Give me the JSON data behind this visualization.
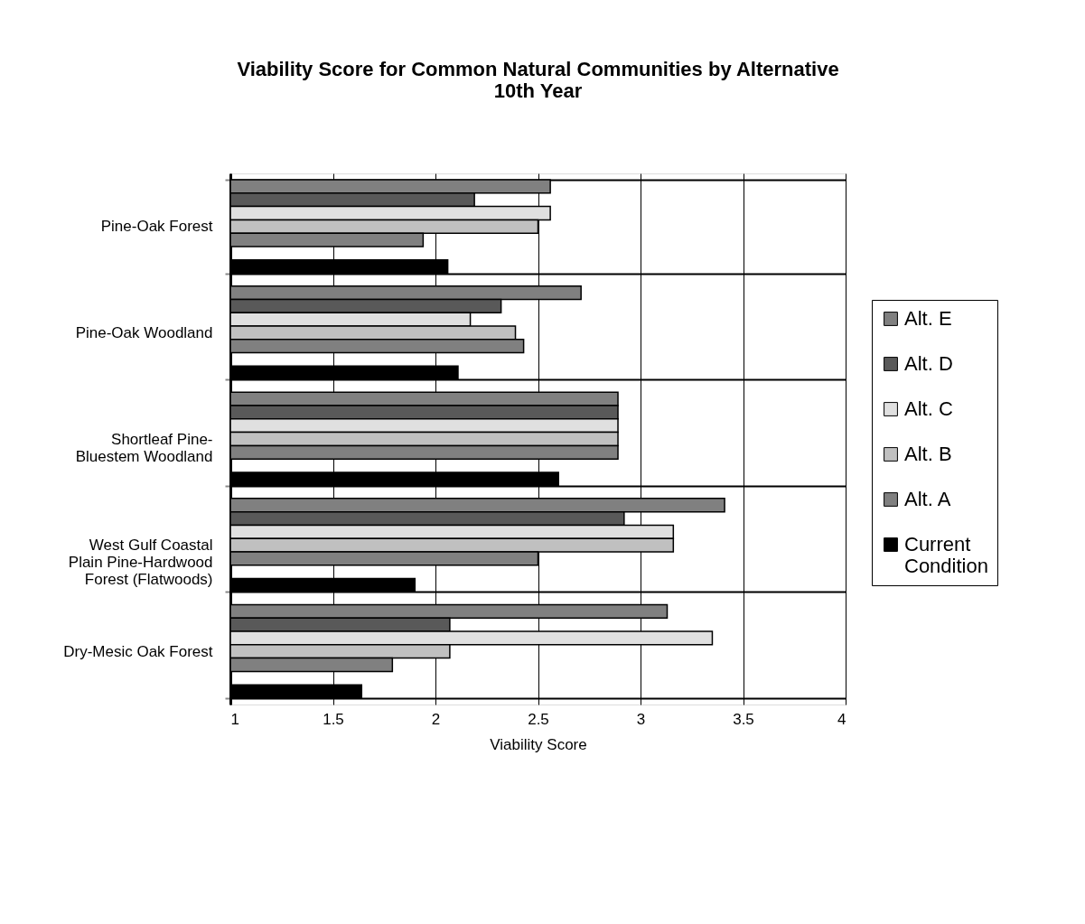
{
  "chart_data": {
    "type": "bar",
    "orientation": "horizontal",
    "title": [
      "Viability Score for Common Natural Communities by Alternative",
      "10th Year"
    ],
    "xlabel": "Viability Score",
    "categories": [
      "Pine-Oak Forest",
      "Pine-Oak Woodland",
      "Shortleaf Pine-Bluestem Woodland",
      "West Gulf Coastal Plain Pine-Hardwood Forest (Flatwoods)",
      "Dry-Mesic Oak Forest"
    ],
    "series": [
      {
        "name": "Alt. E",
        "color": "#808080",
        "values": [
          2.56,
          2.71,
          2.89,
          3.41,
          3.13
        ]
      },
      {
        "name": "Alt. D",
        "color": "#595959",
        "values": [
          2.19,
          2.32,
          2.89,
          2.92,
          2.07
        ]
      },
      {
        "name": "Alt. C",
        "color": "#e0e0e0",
        "values": [
          2.56,
          2.17,
          2.89,
          3.16,
          3.35
        ]
      },
      {
        "name": "Alt. B",
        "color": "#c0c0c0",
        "values": [
          2.5,
          2.39,
          2.89,
          3.16,
          2.07
        ]
      },
      {
        "name": "Alt. A",
        "color": "#808080",
        "values": [
          1.94,
          2.43,
          2.89,
          2.5,
          1.79
        ]
      },
      {
        "name": "Current Condition",
        "color": "#000000",
        "values": [
          2.06,
          2.11,
          2.6,
          1.9,
          1.64
        ]
      }
    ],
    "xlim": [
      1,
      4
    ],
    "xticks": [
      1,
      1.5,
      2,
      2.5,
      3,
      3.5,
      4
    ],
    "grid": true,
    "legend": "right"
  }
}
